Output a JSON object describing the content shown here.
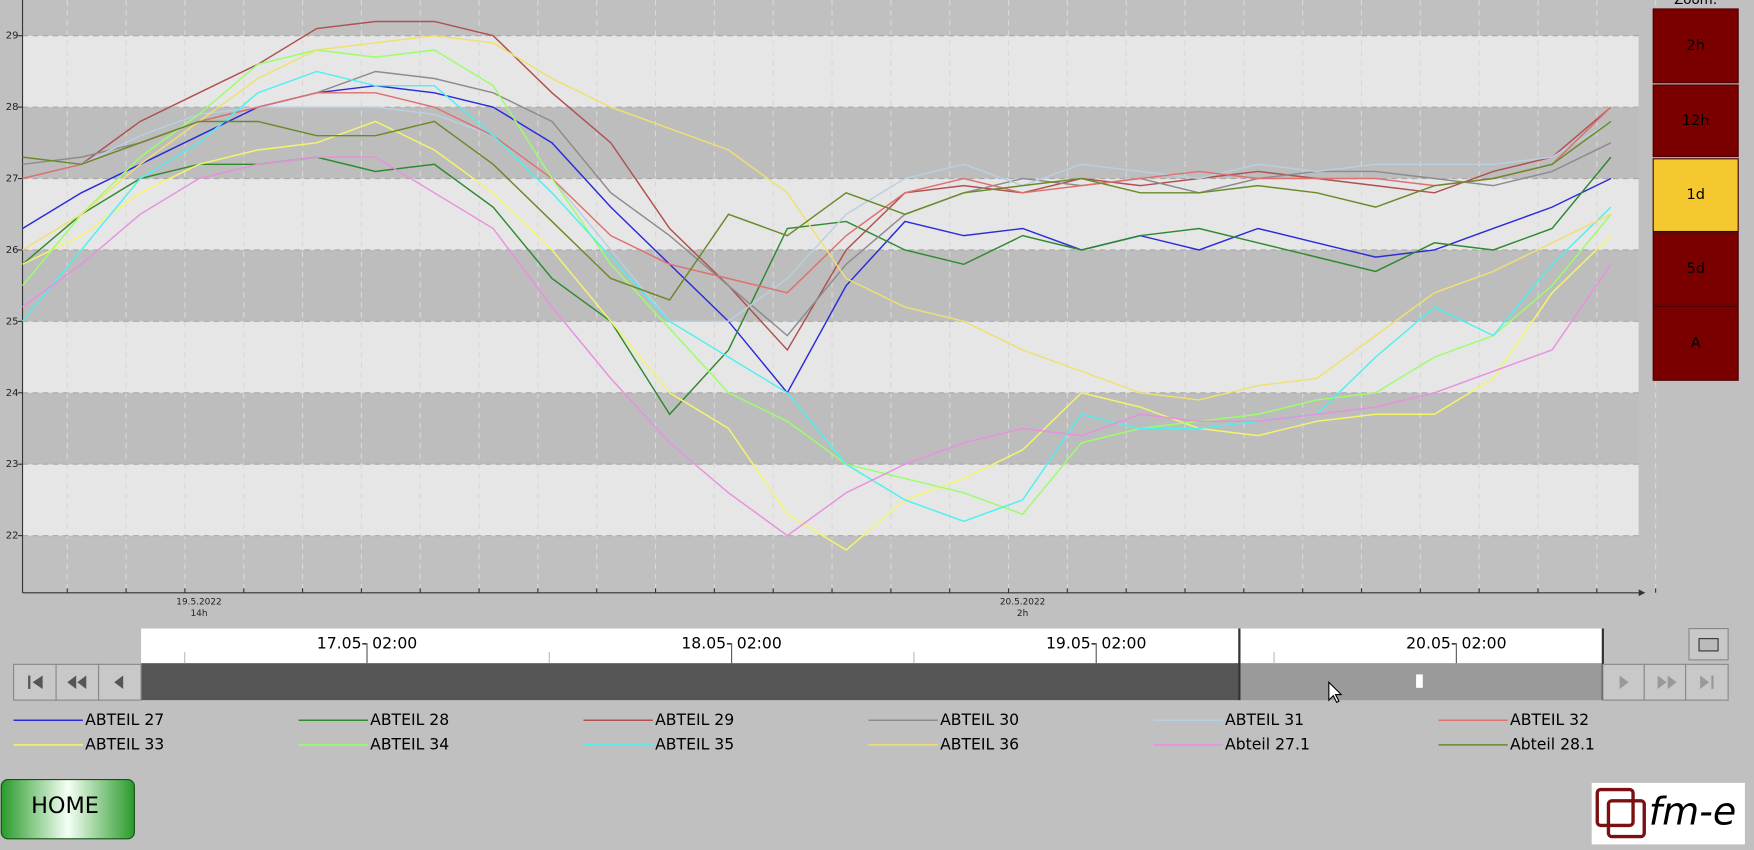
{
  "chart_data": {
    "type": "line",
    "categories": [
      null,
      null,
      null,
      "19.5.2022\n14h",
      null,
      null,
      null,
      null,
      null,
      null,
      null,
      null,
      null,
      null,
      null,
      null,
      null,
      "20.5.2022\n2h",
      null,
      null,
      null,
      null,
      null,
      null,
      null,
      null,
      null,
      null
    ],
    "ylim": [
      21.2,
      29.5
    ],
    "yticks": [
      22,
      23,
      24,
      25,
      26,
      27,
      28,
      29
    ],
    "grid": true,
    "banded": true,
    "series": [
      {
        "name": "ABTEIL 27",
        "color": "#2b2bd9",
        "values": [
          26.3,
          26.8,
          27.2,
          27.6,
          28,
          28.2,
          28.3,
          28.2,
          28,
          27.5,
          26.6,
          25.8,
          25,
          24,
          25.5,
          26.4,
          26.2,
          26.3,
          26,
          26.2,
          26,
          26.3,
          26.1,
          25.9,
          26,
          26.3,
          26.6,
          27
        ]
      },
      {
        "name": "ABTEIL 28",
        "color": "#2f8a2f",
        "values": [
          25.8,
          26.5,
          27,
          27.2,
          27.2,
          27.3,
          27.1,
          27.2,
          26.6,
          25.6,
          25,
          23.7,
          24.6,
          26.3,
          26.4,
          26,
          25.8,
          26.2,
          26,
          26.2,
          26.3,
          26.1,
          25.9,
          25.7,
          26.1,
          26,
          26.3,
          27.3
        ]
      },
      {
        "name": "ABTEIL 29",
        "color": "#b05050",
        "values": [
          27,
          27.2,
          27.8,
          28.2,
          28.6,
          29.1,
          29.2,
          29.2,
          29,
          28.2,
          27.5,
          26.3,
          25.5,
          24.6,
          26,
          26.8,
          26.9,
          26.8,
          27,
          26.9,
          27,
          27.1,
          27,
          26.9,
          26.8,
          27.1,
          27.3,
          28
        ]
      },
      {
        "name": "ABTEIL 30",
        "color": "#8c8c8c",
        "values": [
          27.2,
          27.3,
          27.5,
          27.8,
          28,
          28.2,
          28.5,
          28.4,
          28.2,
          27.8,
          26.8,
          26.2,
          25.5,
          24.8,
          25.8,
          26.5,
          26.8,
          27,
          26.9,
          27,
          26.8,
          27,
          27.1,
          27.1,
          27,
          26.9,
          27.1,
          27.5
        ]
      },
      {
        "name": "ABTEIL 31",
        "color": "#b8d0e0",
        "values": [
          27,
          27.2,
          27.6,
          27.9,
          28,
          28,
          28,
          27.9,
          27.6,
          27,
          26,
          25,
          25,
          25.6,
          26.5,
          27,
          27.2,
          26.9,
          27.2,
          27.1,
          27,
          27.2,
          27.1,
          27.2,
          27.2,
          27.2,
          27.3,
          27.8
        ]
      },
      {
        "name": "ABTEIL 32",
        "color": "#e07070",
        "values": [
          27,
          27.2,
          27.5,
          27.8,
          28,
          28.2,
          28.2,
          28,
          27.6,
          27,
          26.2,
          25.8,
          25.6,
          25.4,
          26.2,
          26.8,
          27,
          26.8,
          26.9,
          27,
          27.1,
          27,
          27,
          27,
          26.9,
          27,
          27.2,
          28
        ]
      },
      {
        "name": "ABTEIL 33",
        "color": "#f5f56a",
        "values": [
          25.8,
          26.2,
          26.8,
          27.2,
          27.4,
          27.5,
          27.8,
          27.4,
          26.8,
          26,
          25,
          24,
          23.5,
          22.3,
          21.8,
          22.5,
          22.8,
          23.2,
          24,
          23.8,
          23.5,
          23.4,
          23.6,
          23.7,
          23.7,
          24.2,
          25.4,
          26.2
        ]
      },
      {
        "name": "ABTEIL 34",
        "color": "#9aff6a",
        "values": [
          25.5,
          26.5,
          27.3,
          27.9,
          28.6,
          28.8,
          28.7,
          28.8,
          28.3,
          27,
          25.8,
          24.9,
          24,
          23.6,
          23,
          22.8,
          22.6,
          22.3,
          23.3,
          23.5,
          23.6,
          23.7,
          23.9,
          24,
          24.5,
          24.8,
          25.5,
          26.5
        ]
      },
      {
        "name": "ABTEIL 35",
        "color": "#4ef0f0",
        "values": [
          25,
          26,
          27,
          27.5,
          28.2,
          28.5,
          28.3,
          28.3,
          27.6,
          26.8,
          25.9,
          25,
          24.5,
          24,
          23,
          22.5,
          22.2,
          22.5,
          23.7,
          23.5,
          23.5,
          23.6,
          23.7,
          24.5,
          25.2,
          24.8,
          25.8,
          26.6
        ]
      },
      {
        "name": "ABTEIL 36",
        "color": "#f0e070",
        "values": [
          26,
          26.5,
          27.2,
          27.8,
          28.4,
          28.8,
          28.9,
          29,
          28.9,
          28.4,
          28,
          27.7,
          27.4,
          26.8,
          25.6,
          25.2,
          25,
          24.6,
          24.3,
          24,
          23.9,
          24.1,
          24.2,
          24.8,
          25.4,
          25.7,
          26.1,
          26.5
        ]
      },
      {
        "name": "Abteil 27.1",
        "color": "#e890e0",
        "values": [
          25.2,
          25.8,
          26.5,
          27,
          27.2,
          27.3,
          27.3,
          26.8,
          26.3,
          25.2,
          24.2,
          23.3,
          22.6,
          22,
          22.6,
          23,
          23.3,
          23.5,
          23.4,
          23.7,
          23.6,
          23.6,
          23.7,
          23.8,
          24,
          24.3,
          24.6,
          25.8
        ]
      },
      {
        "name": "Abteil 28.1",
        "color": "#6a8a2a",
        "values": [
          27.3,
          27.2,
          27.5,
          27.8,
          27.8,
          27.6,
          27.6,
          27.8,
          27.2,
          26.4,
          25.6,
          25.3,
          26.5,
          26.2,
          26.8,
          26.5,
          26.8,
          26.9,
          27,
          26.8,
          26.8,
          26.9,
          26.8,
          26.6,
          26.9,
          27,
          27.2,
          27.8
        ]
      }
    ]
  },
  "zoom": {
    "title": "Zoom:",
    "buttons": [
      "2h",
      "12h",
      "1d",
      "5d",
      "A"
    ],
    "selected_index": 2
  },
  "timeline": {
    "labels": [
      "17.05- 02:00",
      "18.05- 02:00",
      "19.05- 02:00",
      "20.05- 02:00"
    ]
  },
  "home": "HOME",
  "logo": "fm-e"
}
